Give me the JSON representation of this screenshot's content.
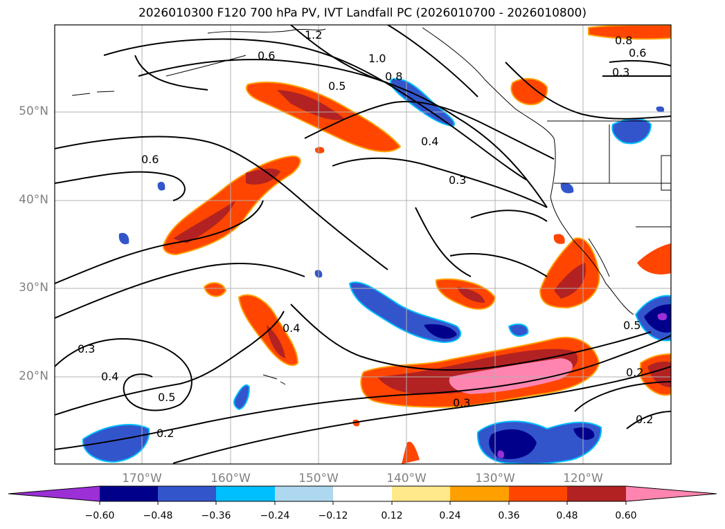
{
  "title": "2026010300 F120 700 hPa PV, IVT Landfall PC (2026010700 - 2026010800)",
  "lat_labels": [
    "50°N",
    "40°N",
    "30°N",
    "20°N"
  ],
  "lon_labels": [
    "170°W",
    "160°W",
    "150°W",
    "140°W",
    "130°W",
    "120°W"
  ],
  "contour_labels": [
    "1.2",
    "0.6",
    "1.0",
    "0.5",
    "0.8",
    "0.8",
    "0.6",
    "0.3",
    "0.4",
    "0.6",
    "0.3",
    "0.4",
    "0.5",
    "0.3",
    "0.4",
    "0.5",
    "0.2",
    "0.3",
    "0.2",
    "0.2"
  ],
  "colorbar": {
    "colors": [
      "#9b30d6",
      "#00008b",
      "#3355cc",
      "#00bfff",
      "#add8f0",
      "#ffffff",
      "#ffe98a",
      "#ffa000",
      "#ff4500",
      "#b22222",
      "#ff85b0"
    ],
    "tick_labels": [
      "−0.60",
      "−0.48",
      "−0.36",
      "−0.24",
      "−0.12",
      "0.12",
      "0.24",
      "0.36",
      "0.48",
      "0.60"
    ]
  }
}
